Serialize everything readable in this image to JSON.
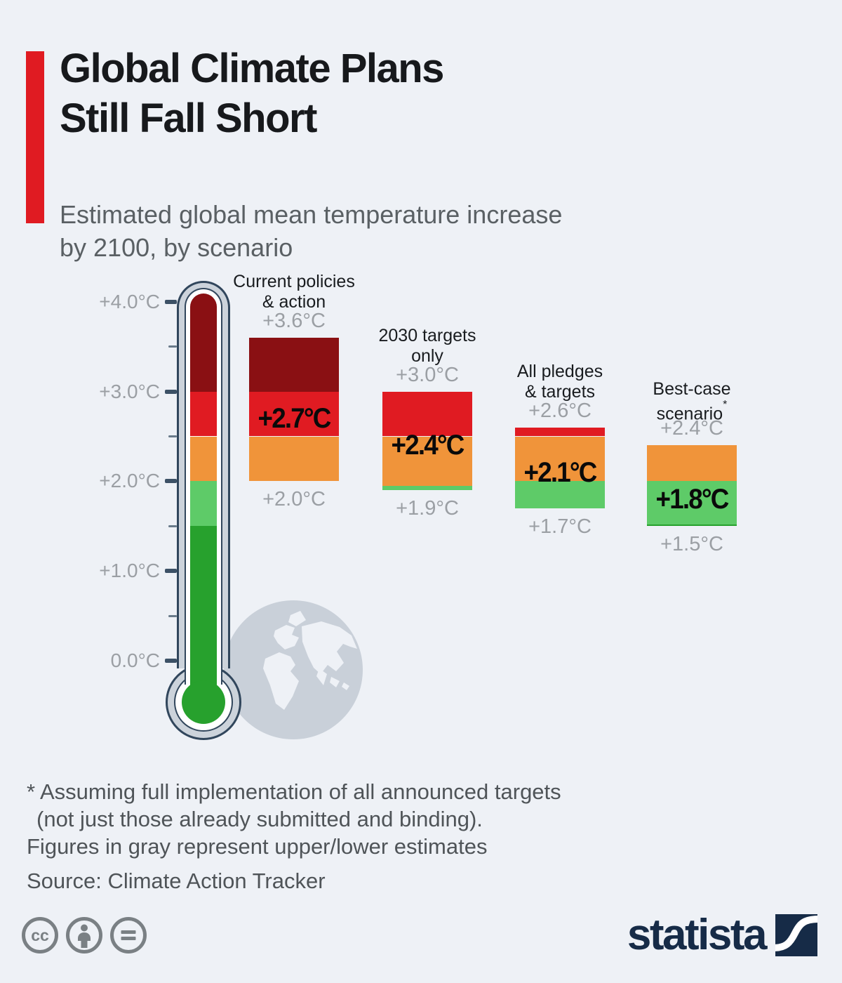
{
  "page": {
    "background": "#eef1f6"
  },
  "header": {
    "title_lines": [
      "Global Climate Plans",
      "Still Fall Short"
    ],
    "subtitle_lines": [
      "Estimated global mean temperature increase",
      "by 2100, by scenario"
    ]
  },
  "colors": {
    "background": "#eef1f6",
    "accent": "#e01b22",
    "dark_red": "#8a1013",
    "red": "#e01b22",
    "orange": "#f0943a",
    "light_green": "#5ecb68",
    "green": "#27a12d",
    "tick": "#3c5166",
    "thermo_outline": "#31465c",
    "thermo_tube": "#ccd3db",
    "globe": "#c9d0d9",
    "estimate_gray": "#9b9fa4",
    "title_dark": "#17191c",
    "subtitle_gray": "#5a6064",
    "footnote_gray": "#4f5458",
    "brand_navy": "#162b47",
    "cc_gray": "#7a8084"
  },
  "chart_data": {
    "type": "bar",
    "title": "Global Climate Plans Still Fall Short",
    "subtitle": "Estimated global mean temperature increase by 2100, by scenario",
    "unit": "°C",
    "axis": {
      "min": 0.0,
      "max": 4.0,
      "ticks": [
        {
          "value": 4.0,
          "label": "+4.0°C"
        },
        {
          "value": 3.5
        },
        {
          "value": 3.0,
          "label": "+3.0°C"
        },
        {
          "value": 2.5
        },
        {
          "value": 2.0,
          "label": "+2.0°C"
        },
        {
          "value": 1.5
        },
        {
          "value": 1.0,
          "label": "+1.0°C"
        },
        {
          "value": 0.5
        },
        {
          "value": 0.0,
          "label": "0.0°C"
        }
      ]
    },
    "thermometer_bands": [
      {
        "from": 4.09,
        "to": 3.0,
        "color": "dark_red"
      },
      {
        "from": 3.0,
        "to": 2.5,
        "color": "red"
      },
      {
        "from": 2.5,
        "to": 2.0,
        "color": "orange"
      },
      {
        "from": 2.0,
        "to": 1.5,
        "color": "light_green"
      },
      {
        "from": 1.5,
        "to": -0.6,
        "color": "green"
      }
    ],
    "series": [
      {
        "scenario": "Current policies & action",
        "name_lines": [
          "Current policies",
          "& action"
        ],
        "upper_estimate": 3.6,
        "central_estimate": 2.7,
        "lower_estimate": 2.0,
        "upper_label": "+3.6°C",
        "central_label": "+2.7°C",
        "lower_label": "+2.0°C",
        "segments": [
          {
            "from": 3.6,
            "to": 3.0,
            "color": "dark_red"
          },
          {
            "from": 3.0,
            "to": 2.5,
            "color": "red"
          },
          {
            "from": 2.5,
            "to": 2.0,
            "color": "orange"
          }
        ]
      },
      {
        "scenario": "2030 targets only",
        "name_lines": [
          "2030 targets",
          "only"
        ],
        "upper_estimate": 3.0,
        "central_estimate": 2.4,
        "lower_estimate": 1.9,
        "upper_label": "+3.0°C",
        "central_label": "+2.4°C",
        "lower_label": "+1.9°C",
        "segments": [
          {
            "from": 3.0,
            "to": 2.5,
            "color": "red"
          },
          {
            "from": 2.5,
            "to": 1.95,
            "color": "orange"
          },
          {
            "from": 1.95,
            "to": 1.9,
            "color": "light_green"
          }
        ]
      },
      {
        "scenario": "All pledges & targets",
        "name_lines": [
          "All pledges",
          "& targets"
        ],
        "upper_estimate": 2.6,
        "central_estimate": 2.1,
        "lower_estimate": 1.7,
        "upper_label": "+2.6°C",
        "central_label": "+2.1°C",
        "lower_label": "+1.7°C",
        "segments": [
          {
            "from": 2.6,
            "to": 2.5,
            "color": "red"
          },
          {
            "from": 2.5,
            "to": 2.0,
            "color": "orange"
          },
          {
            "from": 2.0,
            "to": 1.7,
            "color": "light_green"
          }
        ]
      },
      {
        "scenario": "Best-case scenario*",
        "name_lines": [
          "Best-case",
          "scenario"
        ],
        "name_superscript": "*",
        "upper_estimate": 2.4,
        "central_estimate": 1.8,
        "lower_estimate": 1.5,
        "upper_label": "+2.4°C",
        "central_label": "+1.8°C",
        "lower_label": "+1.5°C",
        "segments": [
          {
            "from": 2.4,
            "to": 2.0,
            "color": "orange"
          },
          {
            "from": 2.0,
            "to": 1.52,
            "color": "light_green"
          },
          {
            "from": 1.52,
            "to": 1.5,
            "color": "green"
          }
        ]
      }
    ]
  },
  "footnote": {
    "lines": [
      "* Assuming full implementation of all announced targets",
      "(not just those already submitted and binding).",
      "Figures in gray represent upper/lower estimates"
    ],
    "source": "Source: Climate Action Tracker"
  },
  "footer": {
    "license_icons": [
      "cc",
      "attribution",
      "no-derivatives"
    ],
    "brand": "statista"
  }
}
